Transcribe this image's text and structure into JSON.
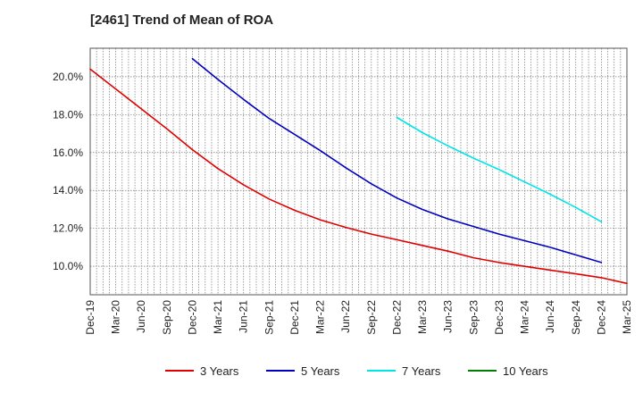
{
  "chart_data": {
    "type": "line",
    "title": "[2461]  Trend of Mean of ROA",
    "xlabel": "",
    "ylabel": "",
    "x_ticks": [
      "Dec-19",
      "Mar-20",
      "Jun-20",
      "Sep-20",
      "Dec-20",
      "Mar-21",
      "Jun-21",
      "Sep-21",
      "Dec-21",
      "Mar-22",
      "Jun-22",
      "Sep-22",
      "Dec-22",
      "Mar-23",
      "Jun-23",
      "Sep-23",
      "Dec-23",
      "Mar-24",
      "Jun-24",
      "Sep-24",
      "Dec-24",
      "Mar-25"
    ],
    "y_ticks": [
      "10.0%",
      "12.0%",
      "14.0%",
      "16.0%",
      "18.0%",
      "20.0%"
    ],
    "ylim": [
      8.5,
      21.5
    ],
    "grid": true,
    "legend_position": "bottom",
    "series": [
      {
        "name": "3 Years",
        "color": "#e00000",
        "x_start": "Dec-19",
        "values": [
          20.4,
          19.35,
          18.3,
          17.25,
          16.15,
          15.15,
          14.3,
          13.55,
          12.95,
          12.45,
          12.05,
          11.7,
          11.4,
          11.1,
          10.8,
          10.45,
          10.2,
          10.0,
          9.8,
          9.6,
          9.4,
          9.1
        ]
      },
      {
        "name": "5 Years",
        "color": "#0000c0",
        "x_start": "Dec-20",
        "values": [
          20.95,
          19.85,
          18.8,
          17.8,
          16.95,
          16.1,
          15.2,
          14.35,
          13.6,
          13.0,
          12.5,
          12.1,
          11.7,
          11.35,
          11.0,
          10.6,
          10.2
        ]
      },
      {
        "name": "7 Years",
        "color": "#00e5e5",
        "x_start": "Dec-22",
        "values": [
          17.85,
          17.05,
          16.35,
          15.7,
          15.1,
          14.45,
          13.8,
          13.1,
          12.35
        ]
      },
      {
        "name": "10 Years",
        "color": "#008000",
        "x_start": null,
        "values": []
      }
    ]
  }
}
